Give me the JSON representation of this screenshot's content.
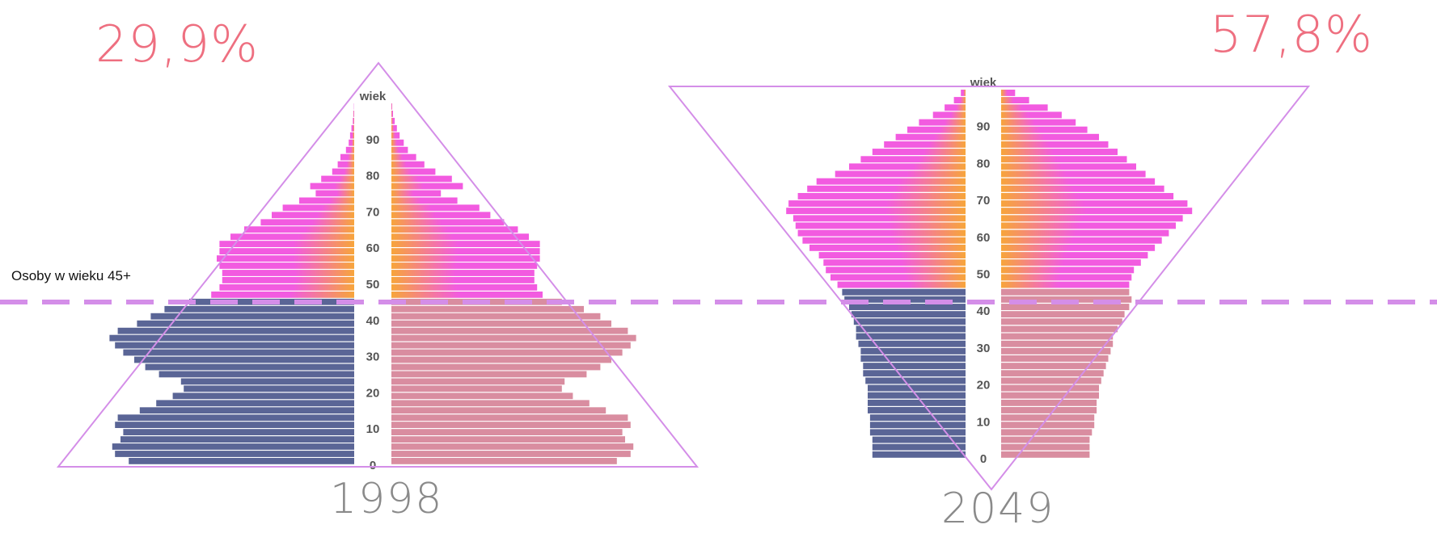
{
  "threshold": {
    "label": "Osoby w wieku 45+",
    "age": 45
  },
  "colors": {
    "male_young": "#5a6596",
    "female_young": "#d98da0",
    "old_inner": "#f7a53a",
    "old_outer": "#f25be0",
    "triangle": "#d48ee8",
    "dashed_line": "#d48ee8",
    "percent": "#ee6f80",
    "year": "#8a8a8a",
    "age_axis_text": "#555555"
  },
  "chart_data": [
    {
      "type": "population-pyramid",
      "year_label": "1998",
      "share_45_plus": "29,9%",
      "axis_label": "wiek",
      "age_ticks": [
        "0",
        "10",
        "20",
        "30",
        "40",
        "50",
        "60",
        "70",
        "80",
        "90"
      ],
      "age_range": [
        0,
        100
      ],
      "males": [
        [
          0,
          0.82
        ],
        [
          2,
          0.87
        ],
        [
          4,
          0.88
        ],
        [
          6,
          0.85
        ],
        [
          8,
          0.84
        ],
        [
          10,
          0.87
        ],
        [
          12,
          0.86
        ],
        [
          14,
          0.78
        ],
        [
          16,
          0.72
        ],
        [
          18,
          0.66
        ],
        [
          20,
          0.62
        ],
        [
          22,
          0.63
        ],
        [
          24,
          0.71
        ],
        [
          26,
          0.76
        ],
        [
          28,
          0.8
        ],
        [
          30,
          0.84
        ],
        [
          32,
          0.87
        ],
        [
          34,
          0.89
        ],
        [
          36,
          0.86
        ],
        [
          38,
          0.79
        ],
        [
          40,
          0.74
        ],
        [
          42,
          0.69
        ],
        [
          44,
          0.6
        ],
        [
          46,
          0.52
        ],
        [
          48,
          0.49
        ],
        [
          50,
          0.48
        ],
        [
          52,
          0.48
        ],
        [
          54,
          0.49
        ],
        [
          56,
          0.5
        ],
        [
          58,
          0.49
        ],
        [
          60,
          0.49
        ],
        [
          62,
          0.45
        ],
        [
          64,
          0.4
        ],
        [
          66,
          0.34
        ],
        [
          68,
          0.3
        ],
        [
          70,
          0.26
        ],
        [
          72,
          0.2
        ],
        [
          74,
          0.14
        ],
        [
          76,
          0.16
        ],
        [
          78,
          0.12
        ],
        [
          80,
          0.08
        ],
        [
          82,
          0.06
        ],
        [
          84,
          0.05
        ],
        [
          86,
          0.03
        ],
        [
          88,
          0.02
        ],
        [
          90,
          0.015
        ],
        [
          92,
          0.01
        ],
        [
          94,
          0.005
        ],
        [
          96,
          0.003
        ],
        [
          98,
          0.001
        ]
      ],
      "females": [
        [
          0,
          0.82
        ],
        [
          2,
          0.87
        ],
        [
          4,
          0.88
        ],
        [
          6,
          0.85
        ],
        [
          8,
          0.84
        ],
        [
          10,
          0.87
        ],
        [
          12,
          0.86
        ],
        [
          14,
          0.78
        ],
        [
          16,
          0.72
        ],
        [
          18,
          0.66
        ],
        [
          20,
          0.62
        ],
        [
          22,
          0.63
        ],
        [
          24,
          0.71
        ],
        [
          26,
          0.76
        ],
        [
          28,
          0.8
        ],
        [
          30,
          0.84
        ],
        [
          32,
          0.87
        ],
        [
          34,
          0.89
        ],
        [
          36,
          0.86
        ],
        [
          38,
          0.8
        ],
        [
          40,
          0.76
        ],
        [
          42,
          0.7
        ],
        [
          44,
          0.62
        ],
        [
          46,
          0.55
        ],
        [
          48,
          0.53
        ],
        [
          50,
          0.52
        ],
        [
          52,
          0.52
        ],
        [
          54,
          0.53
        ],
        [
          56,
          0.54
        ],
        [
          58,
          0.54
        ],
        [
          60,
          0.54
        ],
        [
          62,
          0.5
        ],
        [
          64,
          0.46
        ],
        [
          66,
          0.41
        ],
        [
          68,
          0.36
        ],
        [
          70,
          0.32
        ],
        [
          72,
          0.24
        ],
        [
          74,
          0.18
        ],
        [
          76,
          0.26
        ],
        [
          78,
          0.22
        ],
        [
          80,
          0.16
        ],
        [
          82,
          0.12
        ],
        [
          84,
          0.09
        ],
        [
          86,
          0.06
        ],
        [
          88,
          0.045
        ],
        [
          90,
          0.03
        ],
        [
          92,
          0.02
        ],
        [
          94,
          0.012
        ],
        [
          96,
          0.006
        ],
        [
          98,
          0.003
        ]
      ]
    },
    {
      "type": "population-pyramid",
      "year_label": "2049",
      "share_45_plus": "57,8%",
      "axis_label": "wiek",
      "age_ticks": [
        "0",
        "10",
        "20",
        "30",
        "40",
        "50",
        "60",
        "70",
        "80",
        "90"
      ],
      "age_range": [
        0,
        100
      ],
      "males": [
        [
          0,
          0.4
        ],
        [
          2,
          0.4
        ],
        [
          4,
          0.4
        ],
        [
          6,
          0.41
        ],
        [
          8,
          0.41
        ],
        [
          10,
          0.41
        ],
        [
          12,
          0.42
        ],
        [
          14,
          0.42
        ],
        [
          16,
          0.42
        ],
        [
          18,
          0.42
        ],
        [
          20,
          0.43
        ],
        [
          22,
          0.44
        ],
        [
          24,
          0.44
        ],
        [
          26,
          0.45
        ],
        [
          28,
          0.45
        ],
        [
          30,
          0.46
        ],
        [
          32,
          0.47
        ],
        [
          34,
          0.47
        ],
        [
          36,
          0.48
        ],
        [
          38,
          0.49
        ],
        [
          40,
          0.5
        ],
        [
          42,
          0.52
        ],
        [
          44,
          0.53
        ],
        [
          46,
          0.55
        ],
        [
          48,
          0.58
        ],
        [
          50,
          0.6
        ],
        [
          52,
          0.61
        ],
        [
          54,
          0.63
        ],
        [
          56,
          0.67
        ],
        [
          58,
          0.7
        ],
        [
          60,
          0.72
        ],
        [
          62,
          0.73
        ],
        [
          64,
          0.74
        ],
        [
          66,
          0.77
        ],
        [
          68,
          0.76
        ],
        [
          70,
          0.72
        ],
        [
          72,
          0.68
        ],
        [
          74,
          0.64
        ],
        [
          76,
          0.56
        ],
        [
          78,
          0.5
        ],
        [
          80,
          0.45
        ],
        [
          82,
          0.4
        ],
        [
          84,
          0.35
        ],
        [
          86,
          0.3
        ],
        [
          88,
          0.25
        ],
        [
          90,
          0.2
        ],
        [
          92,
          0.14
        ],
        [
          94,
          0.09
        ],
        [
          96,
          0.05
        ],
        [
          98,
          0.02
        ]
      ],
      "females": [
        [
          0,
          0.38
        ],
        [
          2,
          0.38
        ],
        [
          4,
          0.38
        ],
        [
          6,
          0.39
        ],
        [
          8,
          0.4
        ],
        [
          10,
          0.4
        ],
        [
          12,
          0.41
        ],
        [
          14,
          0.41
        ],
        [
          16,
          0.42
        ],
        [
          18,
          0.42
        ],
        [
          20,
          0.43
        ],
        [
          22,
          0.44
        ],
        [
          24,
          0.45
        ],
        [
          26,
          0.46
        ],
        [
          28,
          0.47
        ],
        [
          30,
          0.48
        ],
        [
          32,
          0.48
        ],
        [
          34,
          0.5
        ],
        [
          36,
          0.52
        ],
        [
          38,
          0.53
        ],
        [
          40,
          0.55
        ],
        [
          42,
          0.56
        ],
        [
          44,
          0.55
        ],
        [
          46,
          0.55
        ],
        [
          48,
          0.56
        ],
        [
          50,
          0.57
        ],
        [
          52,
          0.6
        ],
        [
          54,
          0.63
        ],
        [
          56,
          0.66
        ],
        [
          58,
          0.69
        ],
        [
          60,
          0.72
        ],
        [
          62,
          0.75
        ],
        [
          64,
          0.78
        ],
        [
          66,
          0.82
        ],
        [
          68,
          0.8
        ],
        [
          70,
          0.74
        ],
        [
          72,
          0.7
        ],
        [
          74,
          0.66
        ],
        [
          76,
          0.62
        ],
        [
          78,
          0.58
        ],
        [
          80,
          0.54
        ],
        [
          82,
          0.5
        ],
        [
          84,
          0.46
        ],
        [
          86,
          0.42
        ],
        [
          88,
          0.37
        ],
        [
          90,
          0.32
        ],
        [
          92,
          0.26
        ],
        [
          94,
          0.2
        ],
        [
          96,
          0.12
        ],
        [
          98,
          0.06
        ]
      ]
    }
  ]
}
